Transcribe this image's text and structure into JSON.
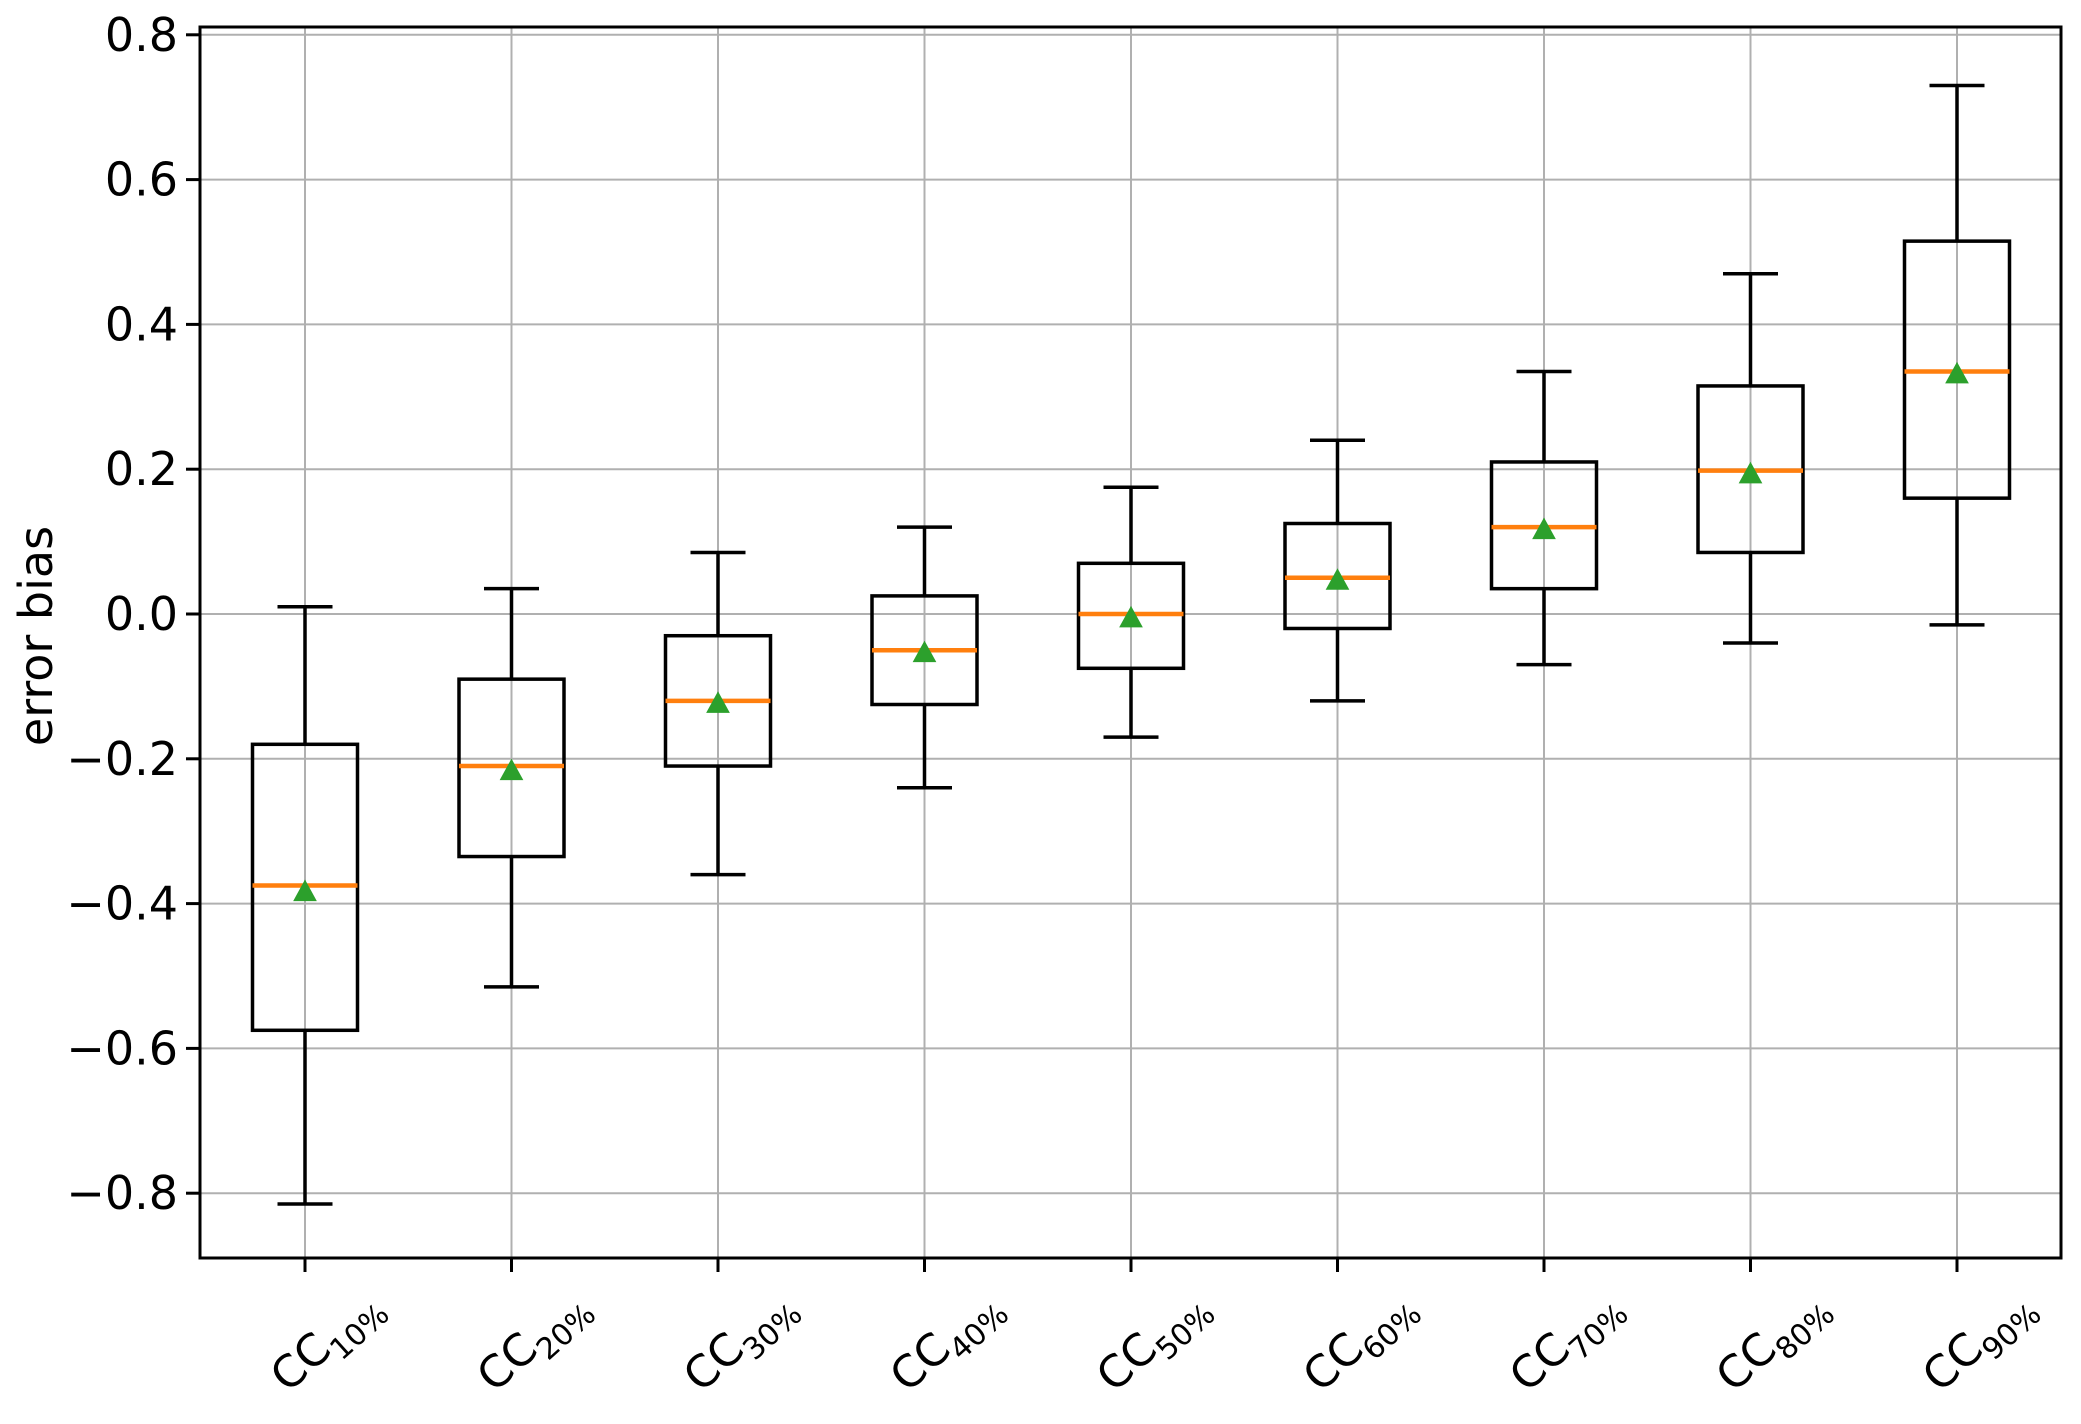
{
  "chart_data": {
    "type": "boxplot",
    "title": "",
    "xlabel": "",
    "ylabel": "error bias",
    "grid": true,
    "legend": null,
    "ylim": [
      -0.9,
      0.81
    ],
    "yticks": [
      0.8,
      0.6,
      0.4,
      0.2,
      0.0,
      -0.2,
      -0.4,
      -0.6,
      -0.8
    ],
    "ytick_labels": [
      "0.8",
      "0.6",
      "0.4",
      "0.2",
      "0.0",
      "−0.2",
      "−0.4",
      "−0.6",
      "−0.8"
    ],
    "categories": [
      "CC10%",
      "CC20%",
      "CC30%",
      "CC40%",
      "CC50%",
      "CC60%",
      "CC70%",
      "CC80%",
      "CC90%"
    ],
    "category_parts": [
      {
        "prefix": "CC",
        "subscript": "10%"
      },
      {
        "prefix": "CC",
        "subscript": "20%"
      },
      {
        "prefix": "CC",
        "subscript": "30%"
      },
      {
        "prefix": "CC",
        "subscript": "40%"
      },
      {
        "prefix": "CC",
        "subscript": "50%"
      },
      {
        "prefix": "CC",
        "subscript": "60%"
      },
      {
        "prefix": "CC",
        "subscript": "70%"
      },
      {
        "prefix": "CC",
        "subscript": "80%"
      },
      {
        "prefix": "CC",
        "subscript": "90%"
      }
    ],
    "boxes": [
      {
        "label": "CC10%",
        "whislo": -0.815,
        "q1": -0.575,
        "med": -0.375,
        "mean": -0.382,
        "q3": -0.18,
        "whishi": 0.01
      },
      {
        "label": "CC20%",
        "whislo": -0.515,
        "q1": -0.335,
        "med": -0.21,
        "mean": -0.215,
        "q3": -0.09,
        "whishi": 0.035
      },
      {
        "label": "CC30%",
        "whislo": -0.36,
        "q1": -0.21,
        "med": -0.12,
        "mean": -0.122,
        "q3": -0.03,
        "whishi": 0.085
      },
      {
        "label": "CC40%",
        "whislo": -0.24,
        "q1": -0.125,
        "med": -0.05,
        "mean": -0.052,
        "q3": 0.025,
        "whishi": 0.12
      },
      {
        "label": "CC50%",
        "whislo": -0.17,
        "q1": -0.075,
        "med": 0.0,
        "mean": -0.004,
        "q3": 0.07,
        "whishi": 0.175
      },
      {
        "label": "CC60%",
        "whislo": -0.12,
        "q1": -0.02,
        "med": 0.05,
        "mean": 0.048,
        "q3": 0.125,
        "whishi": 0.24
      },
      {
        "label": "CC70%",
        "whislo": -0.07,
        "q1": 0.035,
        "med": 0.12,
        "mean": 0.118,
        "q3": 0.21,
        "whishi": 0.335
      },
      {
        "label": "CC80%",
        "whislo": -0.04,
        "q1": 0.085,
        "med": 0.198,
        "mean": 0.195,
        "q3": 0.315,
        "whishi": 0.47
      },
      {
        "label": "CC90%",
        "whislo": -0.015,
        "q1": 0.16,
        "med": 0.335,
        "mean": 0.333,
        "q3": 0.515,
        "whishi": 0.73
      }
    ],
    "marker": "triangle-up",
    "colors": {
      "background": "#ffffff",
      "box_stroke": "#000000",
      "whisker": "#000000",
      "median": "#ff7f0e",
      "mean_marker": "#2ca02c",
      "grid": "#b0b0b0",
      "frame": "#000000",
      "text": "#000000"
    }
  }
}
